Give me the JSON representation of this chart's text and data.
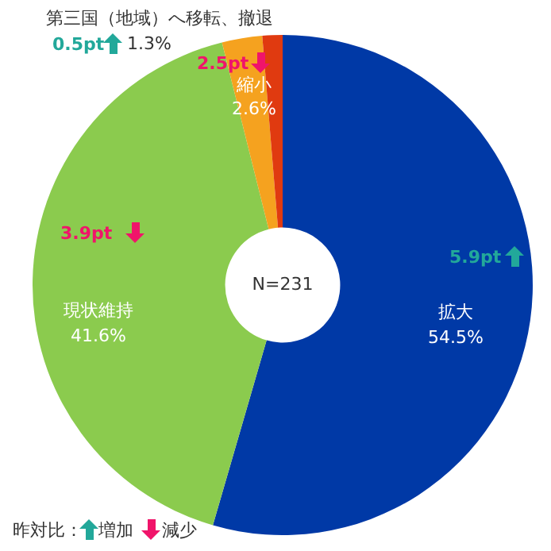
{
  "chart_data": {
    "type": "donut",
    "categories": [
      "拡大",
      "現状維持",
      "縮小",
      "第三国（地域）へ移転、撤退"
    ],
    "values": [
      54.5,
      41.6,
      2.6,
      1.3
    ],
    "colors": [
      "#0039a6",
      "#8bcb4e",
      "#f5a21f",
      "#e03a10"
    ],
    "value_labels": [
      "54.5%",
      "41.6%",
      "2.6%",
      "1.3%"
    ],
    "annotations": [
      "5.9pt",
      "3.9pt",
      "2.5pt",
      "0.5pt",
      "N=231",
      "昨対比：",
      "増加",
      "減少"
    ],
    "legend": false
  }
}
